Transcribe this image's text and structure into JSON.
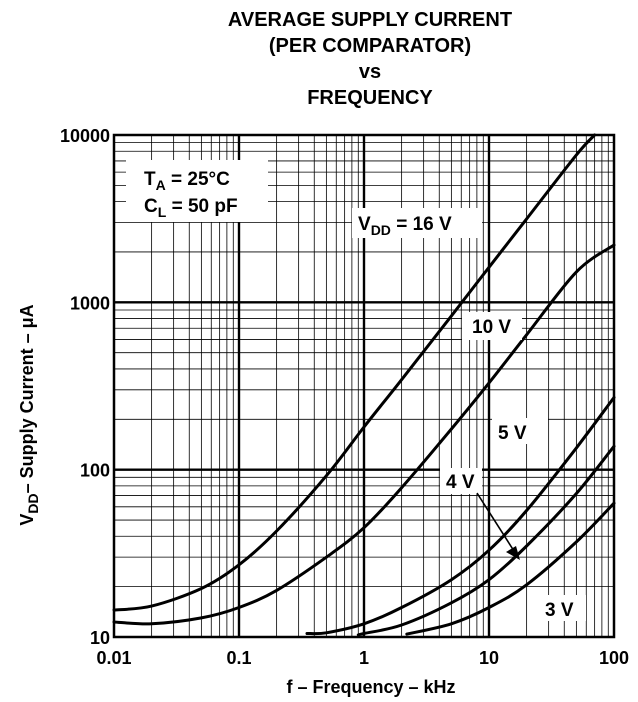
{
  "chart_data": {
    "type": "line",
    "title_lines": [
      "AVERAGE SUPPLY CURRENT",
      "(PER COMPARATOR)",
      "vs",
      "FREQUENCY"
    ],
    "xlabel": "f – Frequency – kHz",
    "ylabel": "V",
    "ylabel_sub": "DD",
    "ylabel_rest": "– Supply Current – μA",
    "xscale": "log",
    "yscale": "log",
    "xlim": [
      0.01,
      100
    ],
    "ylim": [
      10,
      10000
    ],
    "grid": true,
    "x_ticks": [
      "0.01",
      "0.1",
      "1",
      "10",
      "100"
    ],
    "y_ticks": [
      "10",
      "100",
      "1000",
      "10000"
    ],
    "conditions": [
      {
        "main": "T",
        "sub": "A",
        "rest": " =  25°C"
      },
      {
        "main": "C",
        "sub": "L",
        "rest": " = 50 pF"
      }
    ],
    "series": [
      {
        "name": "16 V",
        "label_prefix": "V",
        "label_sub": "DD",
        "label_rest": " = 16 V",
        "x": [
          0.01,
          0.02,
          0.05,
          0.1,
          0.2,
          0.5,
          1,
          2,
          5,
          10,
          20,
          50,
          70
        ],
        "y": [
          14.5,
          15.3,
          19.5,
          27,
          43,
          92,
          180,
          345,
          830,
          1620,
          3150,
          7600,
          10000
        ]
      },
      {
        "name": "10 V",
        "label_text": "10 V",
        "x": [
          0.01,
          0.02,
          0.05,
          0.1,
          0.2,
          0.5,
          1,
          2,
          5,
          10,
          20,
          50,
          100
        ],
        "y": [
          12.3,
          12,
          13,
          15,
          19,
          30,
          45,
          78,
          175,
          330,
          640,
          1520,
          2200
        ]
      },
      {
        "name": "5 V",
        "label_text": "5 V",
        "x": [
          0.35,
          0.5,
          1,
          2,
          5,
          10,
          20,
          50,
          100
        ],
        "y": [
          10.5,
          10.6,
          12,
          15,
          22,
          33,
          57,
          135,
          270
        ]
      },
      {
        "name": "4 V",
        "label_text": "4 V",
        "x": [
          0.9,
          1,
          2,
          5,
          10,
          20,
          50,
          100
        ],
        "y": [
          10.3,
          10.5,
          11.8,
          16,
          22,
          35,
          72,
          138
        ]
      },
      {
        "name": "3 V",
        "label_text": "3 V",
        "x": [
          2.2,
          5,
          10,
          20,
          50,
          100
        ],
        "y": [
          10.4,
          12,
          15,
          20.5,
          37,
          63
        ]
      }
    ],
    "colors": {
      "line": "#000000",
      "grid": "#000000",
      "background": "#ffffff"
    }
  }
}
